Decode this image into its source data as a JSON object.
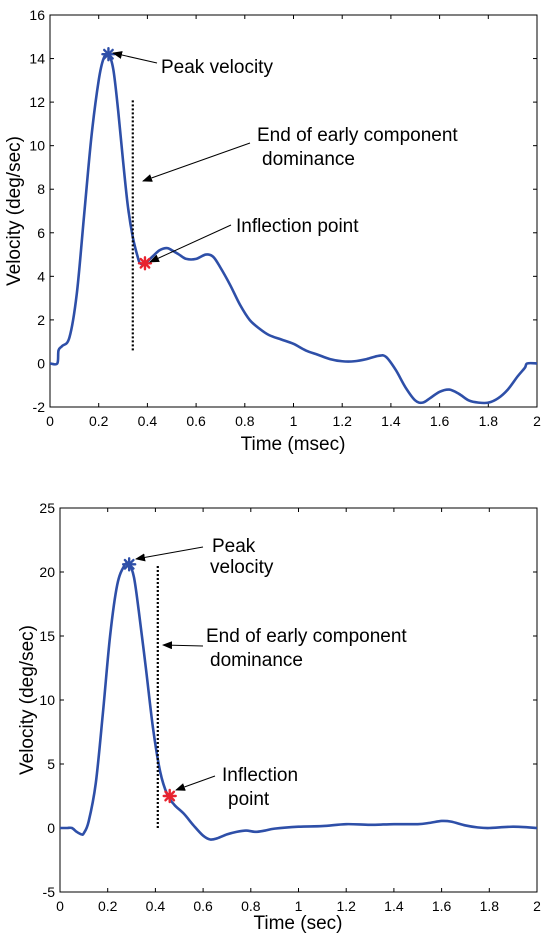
{
  "chart_data": [
    {
      "type": "line",
      "xlabel": "Time (msec)",
      "ylabel": "Velocity (deg/sec)",
      "xlim": [
        0,
        2
      ],
      "ylim": [
        -2,
        16
      ],
      "xticks": [
        "0",
        "0.2",
        "0.4",
        "0.6",
        "0.8",
        "1",
        "1.2",
        "1.4",
        "1.6",
        "1.8",
        "2"
      ],
      "yticks": [
        "-2",
        "0",
        "2",
        "4",
        "6",
        "8",
        "10",
        "12",
        "14",
        "16"
      ],
      "grid": false,
      "line_color": "#2e4fa8",
      "series": [
        {
          "x": [
            0,
            0.03,
            0.035,
            0.05,
            0.08,
            0.11,
            0.14,
            0.17,
            0.2,
            0.22,
            0.24,
            0.26,
            0.28,
            0.3,
            0.32,
            0.34,
            0.36,
            0.37,
            0.39,
            0.42,
            0.45,
            0.48,
            0.5,
            0.53,
            0.56,
            0.6,
            0.64,
            0.67,
            0.7,
            0.74,
            0.78,
            0.82,
            0.86,
            0.9,
            0.95,
            1.0,
            1.05,
            1.1,
            1.15,
            1.2,
            1.25,
            1.3,
            1.35,
            1.38,
            1.42,
            1.46,
            1.5,
            1.53,
            1.56,
            1.6,
            1.64,
            1.68,
            1.72,
            1.76,
            1.8,
            1.84,
            1.88,
            1.92,
            1.95,
            1.96,
            2.0
          ],
          "y": [
            0,
            0,
            0.6,
            0.8,
            1.2,
            3.2,
            6.8,
            10.4,
            13.0,
            14.0,
            14.2,
            13.5,
            11.6,
            9.3,
            7.2,
            5.8,
            4.9,
            4.6,
            4.6,
            4.9,
            5.2,
            5.3,
            5.2,
            5.0,
            4.8,
            4.8,
            5.0,
            4.9,
            4.4,
            3.6,
            2.7,
            2.0,
            1.6,
            1.3,
            1.1,
            0.9,
            0.6,
            0.4,
            0.2,
            0.1,
            0.1,
            0.2,
            0.35,
            0.3,
            -0.3,
            -1.1,
            -1.7,
            -1.8,
            -1.6,
            -1.3,
            -1.2,
            -1.4,
            -1.7,
            -1.8,
            -1.8,
            -1.6,
            -1.2,
            -0.6,
            -0.2,
            0.0,
            0.0
          ]
        }
      ],
      "markers": [
        {
          "x": 0.24,
          "y": 14.2,
          "color": "#2e4fa8"
        },
        {
          "x": 0.39,
          "y": 4.6,
          "color": "#e8232f"
        }
      ],
      "vline": {
        "x": 0.34,
        "y0": 0.6,
        "y1": 12.1
      },
      "annotations": [
        {
          "label": "Peak velocity"
        },
        {
          "label": "End of early component"
        },
        {
          "label": "dominance"
        },
        {
          "label": "Inflection point"
        }
      ]
    },
    {
      "type": "line",
      "xlabel": "Time (sec)",
      "ylabel": "Velocity (deg/sec)",
      "xlim": [
        0,
        2
      ],
      "ylim": [
        -5,
        25
      ],
      "xticks": [
        "0",
        "0.2",
        "0.4",
        "0.6",
        "0.8",
        "1",
        "1.2",
        "1.4",
        "1.6",
        "1.8",
        "2"
      ],
      "yticks": [
        "-5",
        "0",
        "5",
        "10",
        "15",
        "20",
        "25"
      ],
      "grid": false,
      "line_color": "#2e4fa8",
      "series": [
        {
          "x": [
            0,
            0.03,
            0.05,
            0.07,
            0.09,
            0.1,
            0.12,
            0.15,
            0.18,
            0.21,
            0.24,
            0.27,
            0.29,
            0.31,
            0.33,
            0.36,
            0.39,
            0.42,
            0.45,
            0.48,
            0.52,
            0.56,
            0.6,
            0.63,
            0.66,
            0.7,
            0.74,
            0.78,
            0.82,
            0.86,
            0.9,
            1.0,
            1.1,
            1.2,
            1.3,
            1.4,
            1.5,
            1.55,
            1.6,
            1.64,
            1.7,
            1.75,
            1.8,
            1.9,
            2.0
          ],
          "y": [
            0,
            0,
            0,
            -0.3,
            -0.5,
            -0.4,
            0.5,
            3.5,
            9.0,
            15.0,
            19.0,
            20.5,
            20.6,
            19.6,
            17.0,
            12.5,
            7.8,
            4.4,
            2.6,
            1.8,
            1.1,
            0.2,
            -0.6,
            -0.9,
            -0.8,
            -0.5,
            -0.3,
            -0.2,
            -0.3,
            -0.2,
            -0.05,
            0.1,
            0.15,
            0.3,
            0.25,
            0.3,
            0.3,
            0.4,
            0.55,
            0.5,
            0.2,
            0.05,
            0.0,
            0.1,
            0.0
          ]
        }
      ],
      "markers": [
        {
          "x": 0.29,
          "y": 20.6,
          "color": "#2e4fa8"
        },
        {
          "x": 0.46,
          "y": 2.5,
          "color": "#e8232f"
        }
      ],
      "vline": {
        "x": 0.41,
        "y0": 0,
        "y1": 20.5
      },
      "annotations": [
        {
          "label": "Peak"
        },
        {
          "label": "velocity"
        },
        {
          "label": "End of early component"
        },
        {
          "label": "dominance"
        },
        {
          "label": "Inflection"
        },
        {
          "label": "point"
        }
      ]
    }
  ]
}
